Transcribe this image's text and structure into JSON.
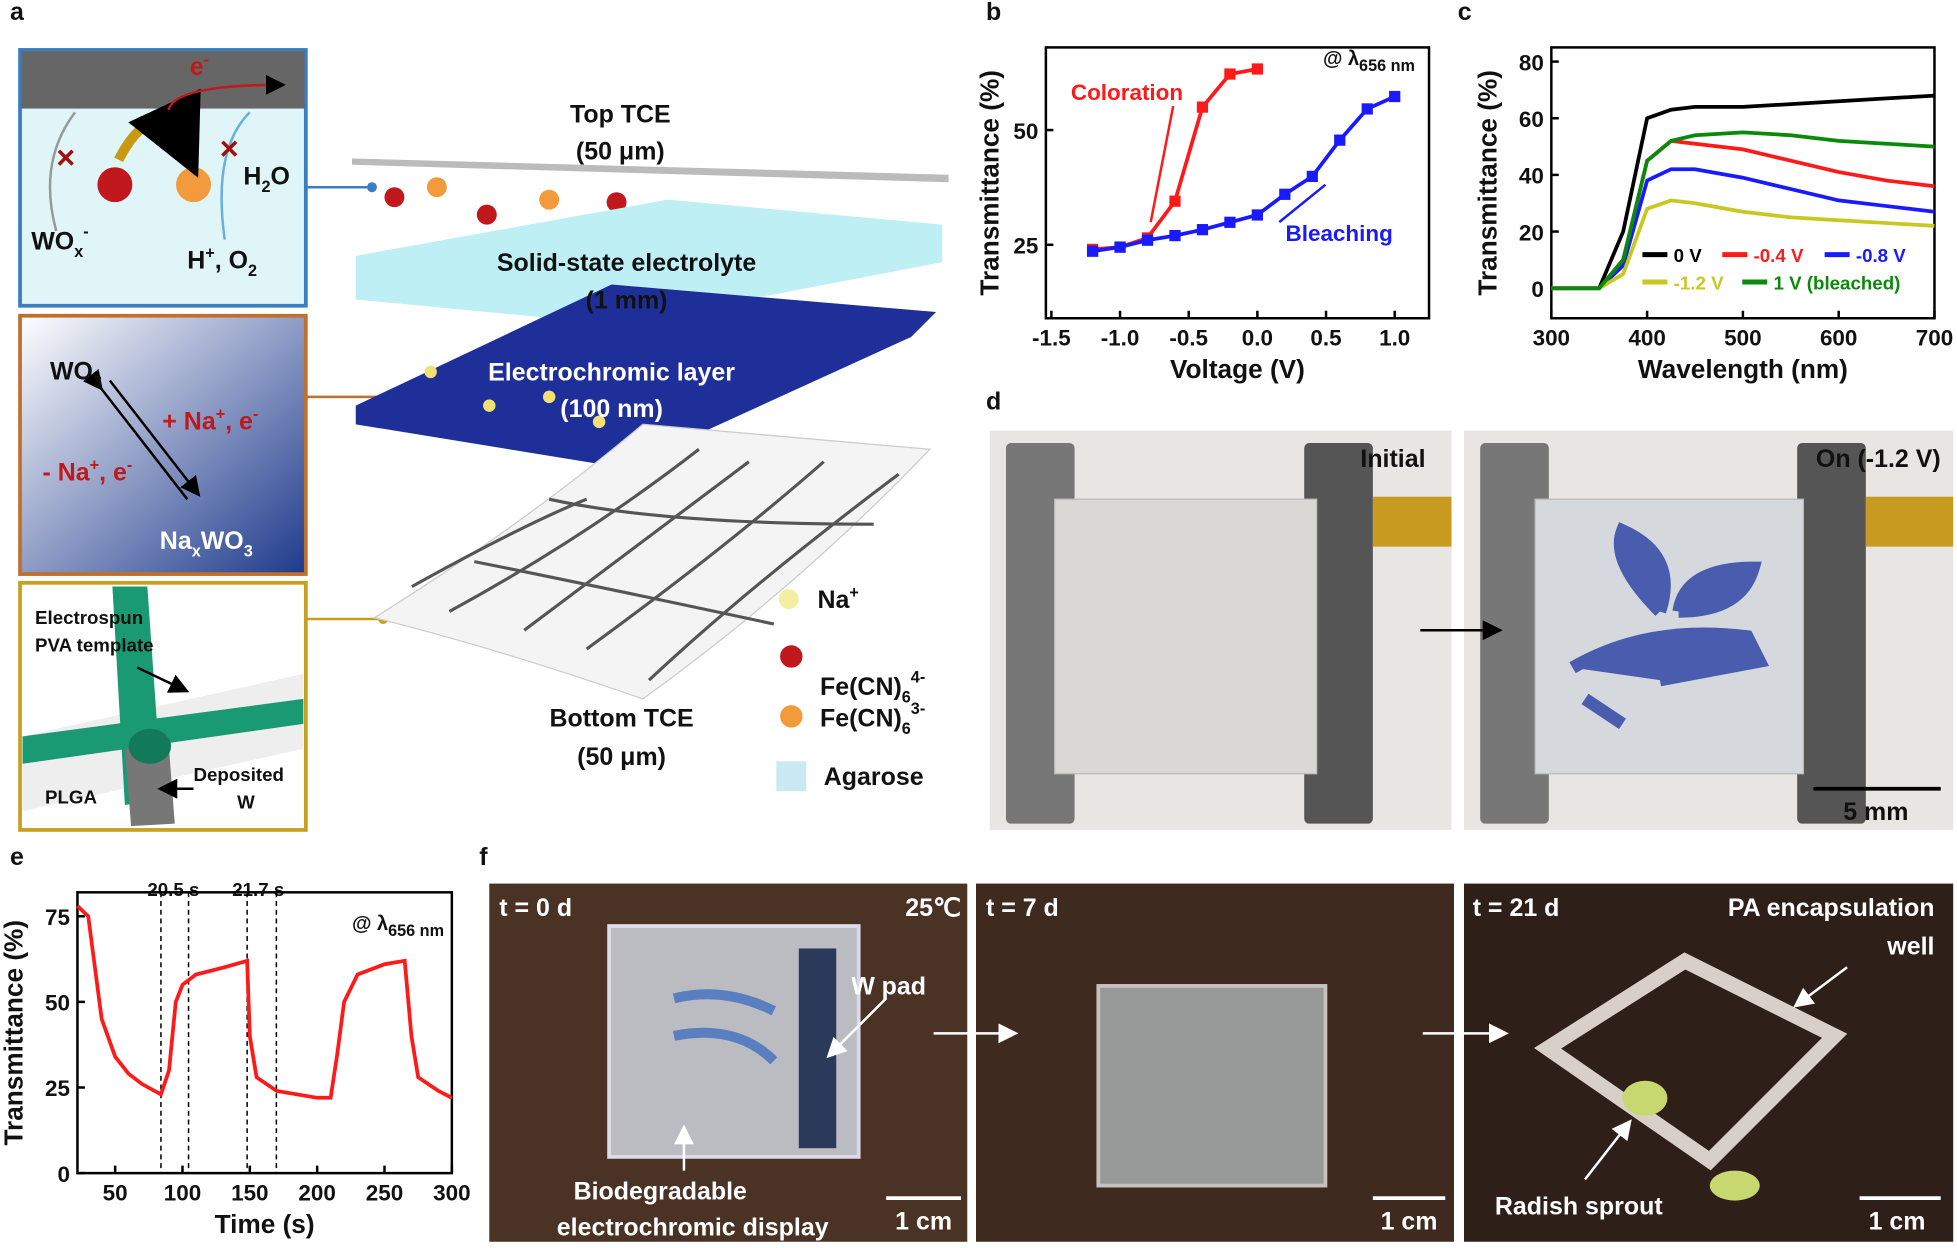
{
  "panel_labels": [
    "a",
    "b",
    "c",
    "d",
    "e",
    "f"
  ],
  "panel_a": {
    "box1": {
      "electron": [
        "e",
        "-"
      ],
      "water": [
        "H",
        "2",
        "O"
      ],
      "wox": [
        "WO",
        "x",
        "-"
      ],
      "products": [
        "H",
        "+",
        ", O",
        "2"
      ]
    },
    "box2": {
      "wo3": [
        "WO",
        "3"
      ],
      "forward": [
        "+ Na",
        "+",
        ", e",
        "-"
      ],
      "reverse": [
        "- Na",
        "+",
        ", e",
        "-"
      ],
      "naxwo3": [
        "Na",
        "x",
        "WO",
        "3"
      ]
    },
    "box3": {
      "template": [
        "Electrospun",
        "PVA template"
      ],
      "deposited": [
        "Deposited",
        "W"
      ],
      "substrate": "PLGA"
    },
    "layers": {
      "top": [
        "Top TCE",
        "(50 μm)"
      ],
      "electrolyte": [
        "Solid-state electrolyte",
        "(1 mm)"
      ],
      "electrochromic": [
        "Electrochromic layer",
        "(100 nm)"
      ],
      "bottom": [
        "Bottom TCE",
        "(50 μm)"
      ]
    },
    "legend": {
      "na": [
        "Na",
        "+"
      ],
      "fe4": [
        "Fe(CN)",
        "6",
        "4-"
      ],
      "fe3": [
        "Fe(CN)",
        "6",
        "3-"
      ],
      "agarose": "Agarose"
    }
  },
  "panel_d": {
    "left": "Initial",
    "right": "On (-1.2 V)",
    "scale": "5 mm"
  },
  "panel_f": {
    "photo1": {
      "time": "t = 0 d",
      "temp": "25℃",
      "pad": "W pad",
      "caption": [
        "Biodegradable",
        "electrochromic display"
      ],
      "scale": "1 cm"
    },
    "photo2": {
      "time": "t = 7 d",
      "scale": "1 cm"
    },
    "photo3": {
      "time": "t = 21 d",
      "well": [
        "PA encapsulation",
        "well"
      ],
      "sprout": "Radish sprout",
      "scale": "1 cm"
    }
  },
  "chart_data": [
    {
      "type": "line",
      "x_label": "Voltage (V)",
      "y_label": "Transmittance (%)",
      "annotations": [
        "Coloration",
        "Bleaching"
      ],
      "wavelength": [
        "@ λ",
        "656 nm"
      ],
      "xlim": [
        -1.54,
        1.25
      ],
      "ylim": [
        9,
        68
      ],
      "xticks": [
        {
          "value": -1.5,
          "label": "-1.5"
        },
        {
          "value": -1,
          "label": "-1.0"
        },
        {
          "value": -0.5,
          "label": "-0.5"
        },
        {
          "value": 0,
          "label": "0.0"
        },
        {
          "value": 0.5,
          "label": "0.5"
        },
        {
          "value": 1,
          "label": "1.0"
        }
      ],
      "yticks": [
        25,
        50
      ],
      "markers": true,
      "series": [
        {
          "name": "Coloration",
          "color": "#ff1a1a",
          "x": [
            -1.2,
            -1,
            -0.8,
            -0.6,
            -0.4,
            -0.2,
            0
          ],
          "values": [
            24,
            24.5,
            26.5,
            34.5,
            55,
            62.2,
            63.3
          ]
        },
        {
          "name": "Bleaching",
          "color": "#1a1aff",
          "x": [
            -1.2,
            -1,
            -0.8,
            -0.6,
            -0.4,
            -0.2,
            0,
            0.2,
            0.4,
            0.6,
            0.8,
            1
          ],
          "values": [
            23.6,
            24.5,
            26,
            27,
            28.3,
            29.9,
            31.5,
            36,
            39.9,
            47.8,
            54.6,
            57.3
          ]
        }
      ]
    },
    {
      "type": "line",
      "x_label": "Wavelength (nm)",
      "y_label": "Transmittance (%)",
      "xlim": [
        300,
        700
      ],
      "ylim": [
        -10.6,
        85
      ],
      "xticks": [
        300,
        400,
        500,
        600,
        700
      ],
      "yticks": [
        0,
        20,
        40,
        60,
        80
      ],
      "markers": false,
      "x": [
        300,
        350,
        375,
        400,
        425,
        450,
        500,
        550,
        600,
        650,
        700
      ],
      "series": [
        {
          "name": "0 V",
          "color": "#000000",
          "values": [
            0,
            0,
            20,
            60,
            63,
            64,
            64,
            65,
            66,
            67,
            68
          ]
        },
        {
          "name": "-0.4 V",
          "color": "#ff1a1a",
          "values": [
            0,
            0,
            10,
            45,
            52,
            51,
            49,
            45,
            41,
            38,
            36
          ]
        },
        {
          "name": "-0.8 V",
          "color": "#1a1aff",
          "values": [
            0,
            0,
            8,
            38,
            42,
            42,
            39,
            35,
            31,
            29,
            27
          ]
        },
        {
          "name": "-1.2 V",
          "color": "#c8c820",
          "values": [
            0,
            0,
            5,
            28,
            31,
            30,
            27,
            25,
            24,
            23,
            22
          ]
        },
        {
          "name": "1 V (bleached)",
          "color": "#0a8a0a",
          "values": [
            0,
            0,
            10,
            45,
            52,
            54,
            55,
            54,
            52,
            51,
            50
          ]
        }
      ]
    },
    {
      "type": "line",
      "x_label": "Time (s)",
      "y_label": "Transmittance (%)",
      "annotations": [
        "20.5 s",
        "21.7 s"
      ],
      "wavelength": [
        "@ λ",
        "656 nm"
      ],
      "xlim": [
        22,
        300
      ],
      "ylim": [
        0,
        82
      ],
      "xticks": [
        50,
        100,
        150,
        200,
        250,
        300
      ],
      "yticks": [
        0,
        25,
        50,
        75
      ],
      "markers": false,
      "dashed_lines_x": [
        84,
        104.5,
        148,
        169.7
      ],
      "x": [
        22,
        30,
        35,
        40,
        50,
        60,
        70,
        84,
        90,
        95,
        100,
        110,
        130,
        148,
        150,
        155,
        170,
        200,
        210,
        215,
        220,
        230,
        250,
        265,
        270,
        275,
        290,
        300
      ],
      "series": [
        {
          "name": null,
          "color": "#ff1a1a",
          "values": [
            78,
            75,
            60,
            45,
            34,
            29,
            26,
            23,
            30,
            50,
            55,
            58,
            60,
            62,
            40,
            28,
            24,
            22,
            22,
            35,
            50,
            58,
            61,
            62,
            40,
            28,
            24,
            22
          ]
        }
      ]
    }
  ]
}
